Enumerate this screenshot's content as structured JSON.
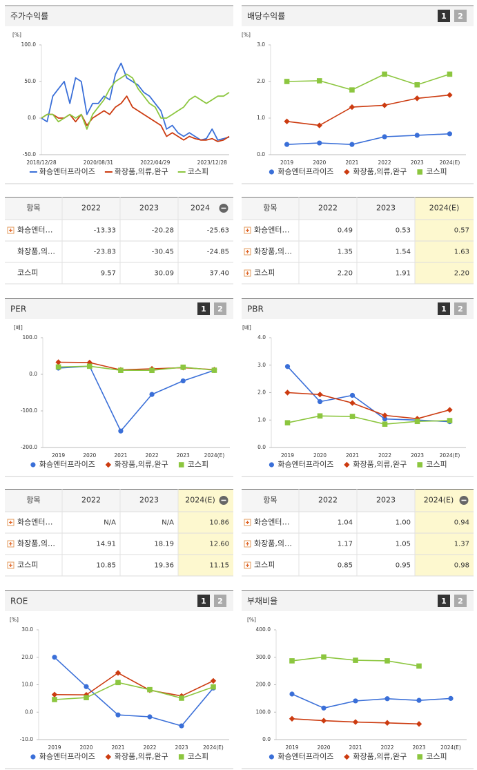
{
  "chart_data": [
    {
      "type": "line",
      "title": "주가수익률",
      "y_unit": "[%]",
      "markers": false,
      "categories": [
        "2018/12/28",
        null,
        null,
        null,
        null,
        null,
        null,
        null,
        null,
        null,
        "2020/08/31",
        null,
        null,
        null,
        null,
        null,
        null,
        null,
        null,
        null,
        "2022/04/29",
        null,
        null,
        null,
        null,
        null,
        null,
        null,
        null,
        null,
        "2023/12/28",
        null,
        null,
        null
      ],
      "ylim": [
        -50,
        100
      ],
      "yticks": [
        {
          "value": 100,
          "label": "100.0"
        },
        {
          "value": 50,
          "label": "50.0"
        },
        {
          "value": 0,
          "label": "0.0"
        },
        {
          "value": -50,
          "label": "-50.0"
        }
      ],
      "series": [
        {
          "name": "화승엔터프라이즈",
          "color": "#3a6fd8",
          "values": [
            0,
            -5,
            30,
            40,
            50,
            20,
            55,
            50,
            5,
            20,
            20,
            30,
            25,
            60,
            75,
            55,
            50,
            45,
            35,
            30,
            20,
            10,
            -15,
            -10,
            -20,
            -25,
            -20,
            -25,
            -30,
            -28,
            -15,
            -30,
            -28,
            -26
          ]
        },
        {
          "name": "화장품,의류,완구",
          "color": "#cc3b10",
          "values": [
            0,
            5,
            5,
            0,
            0,
            5,
            -5,
            5,
            -10,
            0,
            5,
            10,
            5,
            15,
            20,
            30,
            15,
            10,
            5,
            0,
            -5,
            -10,
            -25,
            -20,
            -25,
            -30,
            -25,
            -28,
            -30,
            -30,
            -28,
            -32,
            -30,
            -25
          ]
        },
        {
          "name": "코스피",
          "color": "#8cc63f",
          "values": [
            0,
            5,
            5,
            -5,
            0,
            5,
            0,
            5,
            -15,
            5,
            15,
            25,
            40,
            50,
            55,
            60,
            55,
            40,
            30,
            20,
            15,
            0,
            0,
            5,
            10,
            15,
            25,
            30,
            25,
            20,
            25,
            30,
            30,
            35
          ]
        }
      ]
    },
    {
      "type": "line",
      "title": "배당수익률",
      "y_unit": "[%]",
      "markers": true,
      "buttons": [
        "1",
        "2"
      ],
      "categories": [
        "2019",
        "2020",
        "2021",
        "2022",
        "2023",
        "2024(E)"
      ],
      "ylim": [
        0,
        3
      ],
      "yticks": [
        {
          "value": 3,
          "label": "3.0"
        },
        {
          "value": 2,
          "label": "2.0"
        },
        {
          "value": 1,
          "label": "1.0"
        },
        {
          "value": 0,
          "label": "0.0"
        }
      ],
      "series": [
        {
          "name": "화승엔터프라이즈",
          "color": "#3a6fd8",
          "marker": "circle",
          "values": [
            0.28,
            0.32,
            0.28,
            0.49,
            0.53,
            0.57
          ]
        },
        {
          "name": "화장품,의류,완구",
          "color": "#cc3b10",
          "marker": "diamond",
          "values": [
            0.91,
            0.8,
            1.3,
            1.35,
            1.54,
            1.63
          ]
        },
        {
          "name": "코스피",
          "color": "#8cc63f",
          "marker": "square",
          "values": [
            2.0,
            2.02,
            1.77,
            2.2,
            1.91,
            2.2
          ]
        }
      ]
    },
    {
      "type": "line",
      "title": "PER",
      "y_unit": "[배]",
      "markers": true,
      "buttons": [
        "1",
        "2"
      ],
      "categories": [
        "2019",
        "2020",
        "2021",
        "2022",
        "2023",
        "2024(E)"
      ],
      "ylim": [
        -200,
        100
      ],
      "yticks": [
        {
          "value": 100,
          "label": "100.0"
        },
        {
          "value": 0,
          "label": "0.0"
        },
        {
          "value": -100,
          "label": "-100.0"
        },
        {
          "value": -200,
          "label": "-200.0"
        }
      ],
      "series": [
        {
          "name": "화승엔터프라이즈",
          "color": "#3a6fd8",
          "marker": "circle",
          "values": [
            17,
            22,
            -155,
            -55,
            -18,
            10.86
          ]
        },
        {
          "name": "화장품,의류,완구",
          "color": "#cc3b10",
          "marker": "diamond",
          "values": [
            33,
            32,
            12,
            14.91,
            18.19,
            12.6
          ]
        },
        {
          "name": "코스피",
          "color": "#8cc63f",
          "marker": "square",
          "values": [
            20,
            22,
            11,
            10.85,
            19.36,
            11.15
          ]
        }
      ]
    },
    {
      "type": "line",
      "title": "PBR",
      "y_unit": "[배]",
      "markers": true,
      "buttons": [
        "1",
        "2"
      ],
      "categories": [
        "2019",
        "2020",
        "2021",
        "2022",
        "2023",
        "2024(E)"
      ],
      "ylim": [
        0,
        4
      ],
      "yticks": [
        {
          "value": 4,
          "label": "4.0"
        },
        {
          "value": 3,
          "label": "3.0"
        },
        {
          "value": 2,
          "label": "2.0"
        },
        {
          "value": 1,
          "label": "1.0"
        },
        {
          "value": 0,
          "label": "0.0"
        }
      ],
      "series": [
        {
          "name": "화승엔터프라이즈",
          "color": "#3a6fd8",
          "marker": "circle",
          "values": [
            2.95,
            1.67,
            1.9,
            1.04,
            1.0,
            0.94
          ]
        },
        {
          "name": "화장품,의류,완구",
          "color": "#cc3b10",
          "marker": "diamond",
          "values": [
            2.0,
            1.93,
            1.62,
            1.17,
            1.05,
            1.37
          ]
        },
        {
          "name": "코스피",
          "color": "#8cc63f",
          "marker": "square",
          "values": [
            0.9,
            1.15,
            1.13,
            0.85,
            0.95,
            0.98
          ]
        }
      ]
    },
    {
      "type": "line",
      "title": "ROE",
      "y_unit": "[%]",
      "markers": true,
      "buttons": [
        "1",
        "2"
      ],
      "categories": [
        "2019",
        "2020",
        "2021",
        "2022",
        "2023",
        "2024(E)"
      ],
      "ylim": [
        -10,
        30
      ],
      "yticks": [
        {
          "value": 30,
          "label": "30.0"
        },
        {
          "value": 20,
          "label": "20.0"
        },
        {
          "value": 10,
          "label": "10.0"
        },
        {
          "value": 0,
          "label": "0.0"
        },
        {
          "value": -10,
          "label": "-10.0"
        }
      ],
      "series": [
        {
          "name": "화승엔터프라이즈",
          "color": "#3a6fd8",
          "marker": "circle",
          "values": [
            20,
            9.3,
            -1,
            -1.7,
            -5,
            8.8
          ]
        },
        {
          "name": "화장품,의류,완구",
          "color": "#cc3b10",
          "marker": "diamond",
          "values": [
            6.4,
            6.3,
            14.3,
            8,
            5.9,
            11.4
          ]
        },
        {
          "name": "코스피",
          "color": "#8cc63f",
          "marker": "square",
          "values": [
            4.6,
            5.3,
            10.8,
            8.2,
            5.1,
            9.2
          ]
        }
      ]
    },
    {
      "type": "line",
      "title": "부채비율",
      "y_unit": "[%]",
      "markers": true,
      "buttons": [
        "1",
        "2"
      ],
      "categories": [
        "2019",
        "2020",
        "2021",
        "2022",
        "2023",
        "2024(E)"
      ],
      "ylim": [
        0,
        400
      ],
      "yticks": [
        {
          "value": 400,
          "label": "400.0"
        },
        {
          "value": 300,
          "label": "300.0"
        },
        {
          "value": 200,
          "label": "200.0"
        },
        {
          "value": 100,
          "label": "100.0"
        },
        {
          "value": 0,
          "label": "0.0"
        }
      ],
      "series": [
        {
          "name": "화승엔터프라이즈",
          "color": "#3a6fd8",
          "marker": "circle",
          "values": [
            166,
            115,
            141,
            149,
            143,
            150
          ]
        },
        {
          "name": "화장품,의류,완구",
          "color": "#cc3b10",
          "marker": "diamond",
          "values": [
            76,
            69,
            64,
            61,
            57,
            null
          ]
        },
        {
          "name": "코스피",
          "color": "#8cc63f",
          "marker": "square",
          "values": [
            287,
            301,
            289,
            287,
            268,
            null
          ]
        }
      ]
    }
  ],
  "tables": [
    {
      "header": [
        "항목",
        "2022",
        "2023",
        "2024"
      ],
      "collapse_icon": true,
      "highlight_last": false,
      "expandable": [
        true,
        false,
        false
      ],
      "rows": [
        [
          "화승엔터…",
          "-13.33",
          "-20.28",
          "-25.63"
        ],
        [
          "화장품,의…",
          "-23.83",
          "-30.45",
          "-24.85"
        ],
        [
          "코스피",
          "9.57",
          "30.09",
          "37.40"
        ]
      ]
    },
    {
      "header": [
        "항목",
        "2022",
        "2023",
        "2024(E)"
      ],
      "collapse_icon": false,
      "highlight_last": true,
      "expandable": [
        true,
        true,
        true
      ],
      "rows": [
        [
          "화승엔터…",
          "0.49",
          "0.53",
          "0.57"
        ],
        [
          "화장품,의…",
          "1.35",
          "1.54",
          "1.63"
        ],
        [
          "코스피",
          "2.20",
          "1.91",
          "2.20"
        ]
      ]
    },
    {
      "header": [
        "항목",
        "2022",
        "2023",
        "2024(E)"
      ],
      "collapse_icon": true,
      "highlight_last": true,
      "expandable": [
        true,
        true,
        true
      ],
      "rows": [
        [
          "화승엔터…",
          "N/A",
          "N/A",
          "10.86"
        ],
        [
          "화장품,의…",
          "14.91",
          "18.19",
          "12.60"
        ],
        [
          "코스피",
          "10.85",
          "19.36",
          "11.15"
        ]
      ]
    },
    {
      "header": [
        "항목",
        "2022",
        "2023",
        "2024(E)"
      ],
      "collapse_icon": true,
      "highlight_last": true,
      "expandable": [
        true,
        true,
        true
      ],
      "rows": [
        [
          "화승엔터…",
          "1.04",
          "1.00",
          "0.94"
        ],
        [
          "화장품,의…",
          "1.17",
          "1.05",
          "1.37"
        ],
        [
          "코스피",
          "0.85",
          "0.95",
          "0.98"
        ]
      ]
    }
  ]
}
